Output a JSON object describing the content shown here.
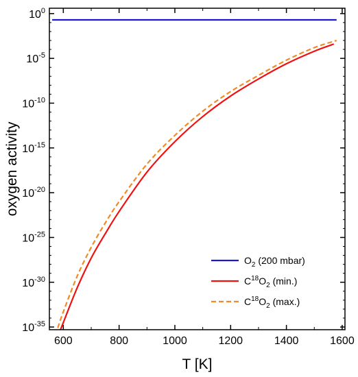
{
  "chart_data": {
    "type": "line",
    "xlabel": "T [K]",
    "ylabel": "oxygen activity",
    "xlim": [
      550,
      1610
    ],
    "ylog": true,
    "ylim_exp": [
      -35.3,
      0.6
    ],
    "x_ticks": [
      600,
      800,
      1000,
      1200,
      1400,
      1600
    ],
    "x_tick_labels": [
      "600",
      "800",
      "1000",
      "1200",
      "1400",
      "1600"
    ],
    "y_ticks_exp": [
      0,
      -5,
      -10,
      -15,
      -20,
      -25,
      -30,
      -35
    ],
    "y_tick_labels": [
      {
        "base": "10",
        "exp": "0"
      },
      {
        "base": "10",
        "exp": "-5"
      },
      {
        "base": "10",
        "exp": "-10"
      },
      {
        "base": "10",
        "exp": "-15"
      },
      {
        "base": "10",
        "exp": "-20"
      },
      {
        "base": "10",
        "exp": "-25"
      },
      {
        "base": "10",
        "exp": "-30"
      },
      {
        "base": "10",
        "exp": "-35"
      }
    ],
    "legend_position": "bottom-right",
    "grid": false,
    "series": [
      {
        "name": "O2 (200 mbar)",
        "legend": {
          "main": "O",
          "sup_pre": "",
          "sub": "2",
          "rest": " (200 mbar)"
        },
        "color": "#1a1acc",
        "dash": "solid",
        "x": [
          560,
          1580
        ],
        "y_log10": [
          -0.7,
          -0.7
        ]
      },
      {
        "name": "C18O2 (min.)",
        "legend": {
          "main": "C",
          "sup_pre": "18",
          "sub": "2",
          "rest": " (min.)",
          "o": "O"
        },
        "color": "#ee1111",
        "dash": "solid",
        "x": [
          590,
          600,
          650,
          700,
          750,
          800,
          900,
          1000,
          1100,
          1200,
          1300,
          1400,
          1500,
          1570
        ],
        "y_log10": [
          -35.3,
          -34.5,
          -30.6,
          -27.3,
          -24.6,
          -22.1,
          -17.7,
          -14.3,
          -11.5,
          -9.2,
          -7.3,
          -5.6,
          -4.2,
          -3.4
        ]
      },
      {
        "name": "C18O2 (max.)",
        "legend": {
          "main": "C",
          "sup_pre": "18",
          "sub": "2",
          "rest": " (max.)",
          "o": "O"
        },
        "color": "#f08a24",
        "dash": "dashed",
        "x": [
          580,
          600,
          650,
          700,
          750,
          800,
          900,
          1000,
          1100,
          1200,
          1300,
          1400,
          1500,
          1580
        ],
        "y_log10": [
          -35.1,
          -33.3,
          -29.3,
          -26.1,
          -23.4,
          -21.0,
          -16.8,
          -13.6,
          -10.9,
          -8.7,
          -6.9,
          -5.2,
          -3.8,
          -3.0
        ]
      }
    ]
  }
}
